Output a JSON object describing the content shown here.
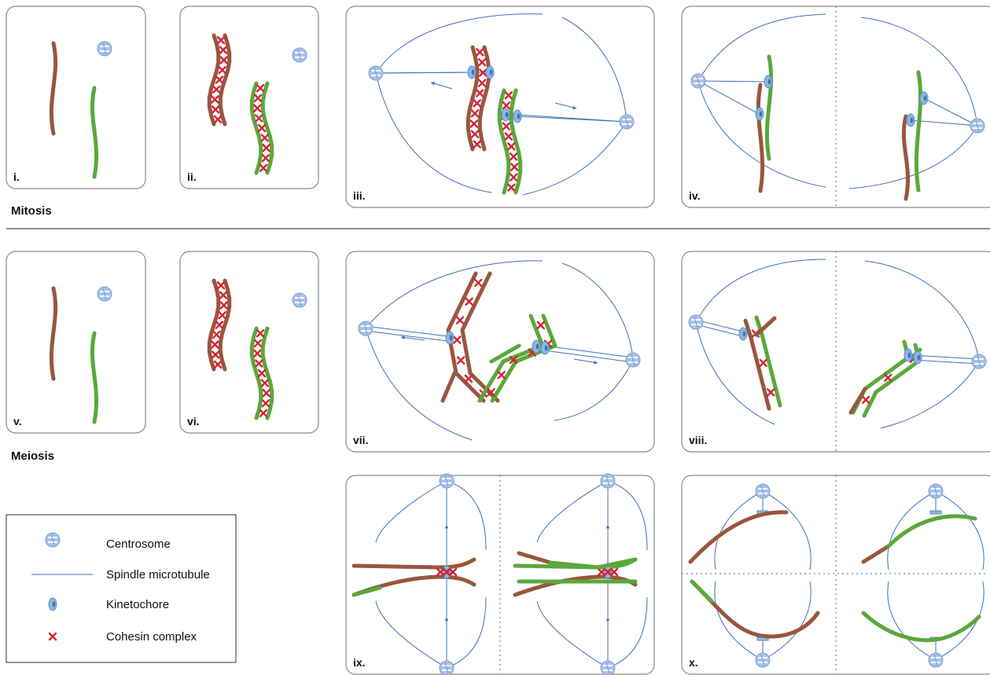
{
  "sections": [
    {
      "label": "Mitosis"
    },
    {
      "label": "Meiosis"
    }
  ],
  "panels": [
    {
      "label": "i."
    },
    {
      "label": "ii."
    },
    {
      "label": "iii."
    },
    {
      "label": "iv."
    },
    {
      "label": "v."
    },
    {
      "label": "vi."
    },
    {
      "label": "vii."
    },
    {
      "label": "viii."
    },
    {
      "label": "ix."
    },
    {
      "label": "x."
    }
  ],
  "legend": {
    "items": [
      {
        "label": "Centrosome"
      },
      {
        "label": "Spindle microtubule"
      },
      {
        "label": "Kinetochore"
      },
      {
        "label": "Cohesin complex"
      }
    ]
  }
}
